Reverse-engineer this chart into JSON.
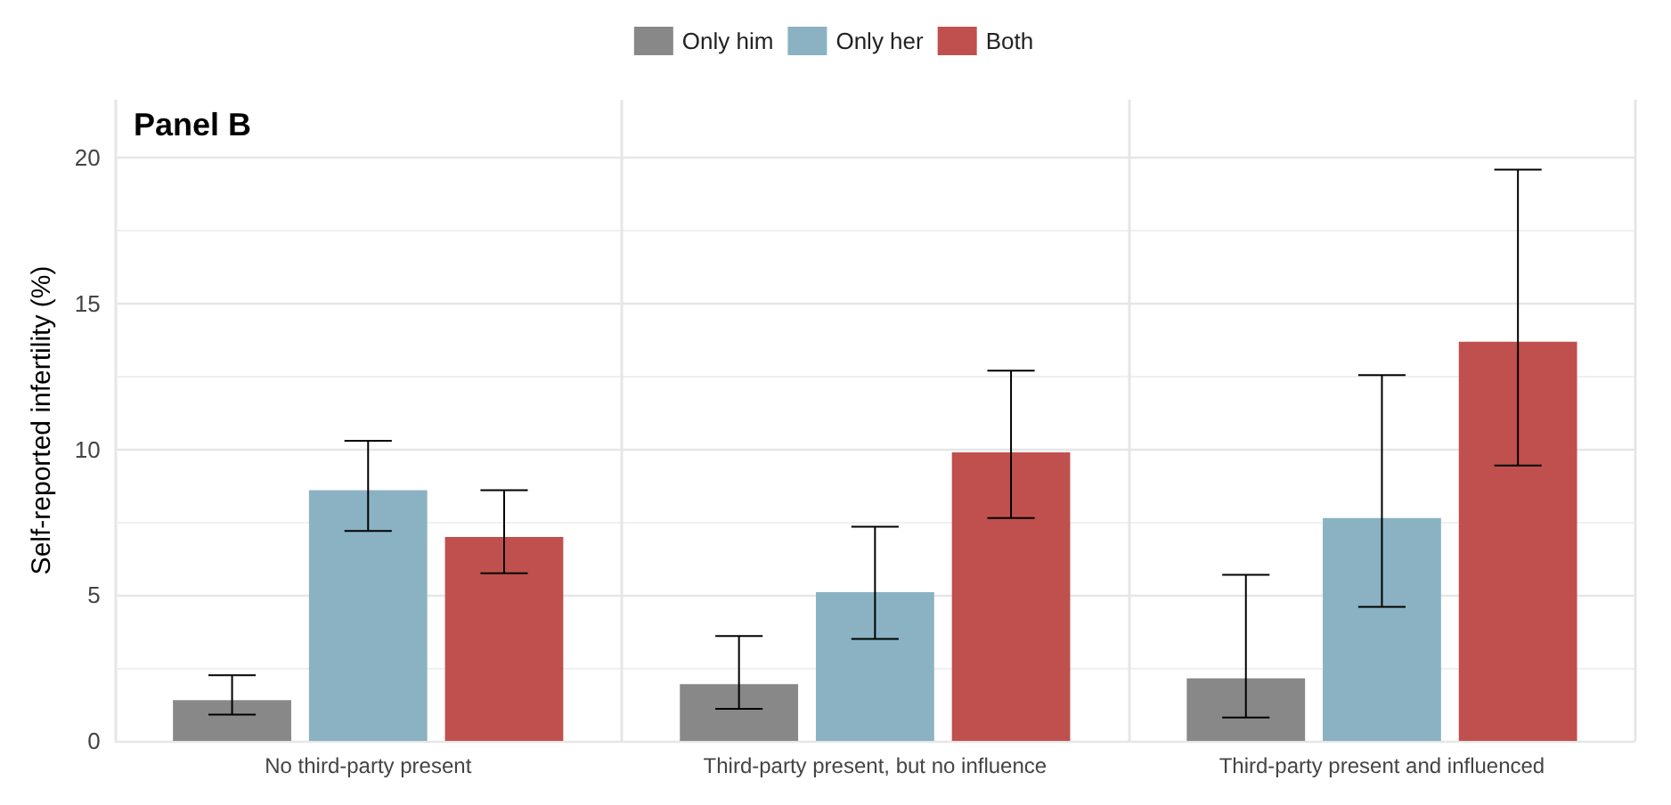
{
  "chart_data": {
    "type": "bar",
    "title": "Panel B",
    "ylabel": "Self-reported infertility (%)",
    "categories": [
      "No third-party present",
      "Third-party present, but no influence",
      "Third-party present and influenced"
    ],
    "series": [
      {
        "name": "Only him",
        "color": "#888888",
        "values": [
          1.4,
          1.95,
          2.15
        ],
        "errors": [
          [
            0.9,
            2.25
          ],
          [
            1.1,
            3.6
          ],
          [
            0.8,
            5.7
          ]
        ]
      },
      {
        "name": "Only her",
        "color": "#8ab2c2",
        "values": [
          8.6,
          5.1,
          7.65
        ],
        "errors": [
          [
            7.2,
            10.3
          ],
          [
            3.5,
            7.35
          ],
          [
            4.6,
            12.55
          ]
        ]
      },
      {
        "name": "Both",
        "color": "#c0504d",
        "values": [
          7.0,
          9.9,
          13.7
        ],
        "errors": [
          [
            5.75,
            8.6
          ],
          [
            7.65,
            12.7
          ],
          [
            9.45,
            19.6
          ]
        ]
      }
    ],
    "ylim": [
      0,
      22
    ],
    "yticks": [
      0,
      5,
      10,
      15,
      20
    ],
    "grid": true,
    "legend": "top"
  }
}
